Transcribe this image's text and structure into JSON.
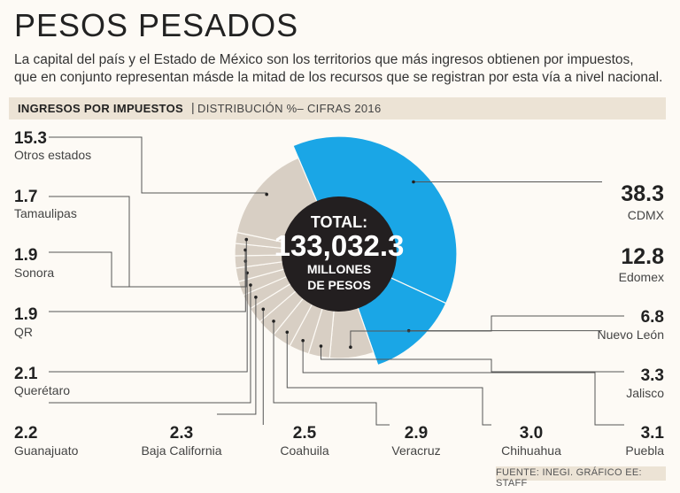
{
  "header": {
    "title": "PESOS PESADOS",
    "subtitle_line1": "La capital del país y el Estado de México son los territorios que más ingresos obtienen por impuestos,",
    "subtitle_line2": "que en conjunto representan másde la mitad de los recursos que se registran por esta vía a nivel nacional."
  },
  "band": {
    "label": "INGRESOS POR IMPUESTOS",
    "separator": "|",
    "detail": "DISTRIBUCIÓN %– CIFRAS 2016"
  },
  "center": {
    "line1": "TOTAL:",
    "line2": "133,032.3",
    "line3": "MILLONES",
    "line4": "DE PESOS"
  },
  "footer": "FUENTE: INEGI. GRÁFICO EE: STAFF",
  "colors": {
    "highlight": "#1aa6e6",
    "segment": "#d8cfc4",
    "center": "#231f20",
    "line": "#555555"
  },
  "chart_data": {
    "type": "pie",
    "title": "INGRESOS POR IMPUESTOS",
    "donut": true,
    "slices": [
      {
        "name": "CDMX",
        "value": 38.3,
        "value_label": "38.3",
        "highlight": true
      },
      {
        "name": "Edomex",
        "value": 12.8,
        "value_label": "12.8",
        "highlight": true
      },
      {
        "name": "Nuevo León",
        "value": 6.8,
        "value_label": "6.8"
      },
      {
        "name": "Jalisco",
        "value": 3.3,
        "value_label": "3.3"
      },
      {
        "name": "Puebla",
        "value": 3.1,
        "value_label": "3.1"
      },
      {
        "name": "Chihuahua",
        "value": 3.0,
        "value_label": "3.0"
      },
      {
        "name": "Veracruz",
        "value": 2.9,
        "value_label": "2.9"
      },
      {
        "name": "Coahuila",
        "value": 2.5,
        "value_label": "2.5"
      },
      {
        "name": "Baja California",
        "value": 2.3,
        "value_label": "2.3"
      },
      {
        "name": "Guanajuato",
        "value": 2.2,
        "value_label": "2.2"
      },
      {
        "name": "Querétaro",
        "value": 2.1,
        "value_label": "2.1"
      },
      {
        "name": "QR",
        "value": 1.9,
        "value_label": "1.9"
      },
      {
        "name": "Sonora",
        "value": 1.9,
        "value_label": "1.9"
      },
      {
        "name": "Tamaulipas",
        "value": 1.7,
        "value_label": "1.7"
      },
      {
        "name": "Otros estados",
        "value": 15.3,
        "value_label": "15.3"
      }
    ]
  }
}
